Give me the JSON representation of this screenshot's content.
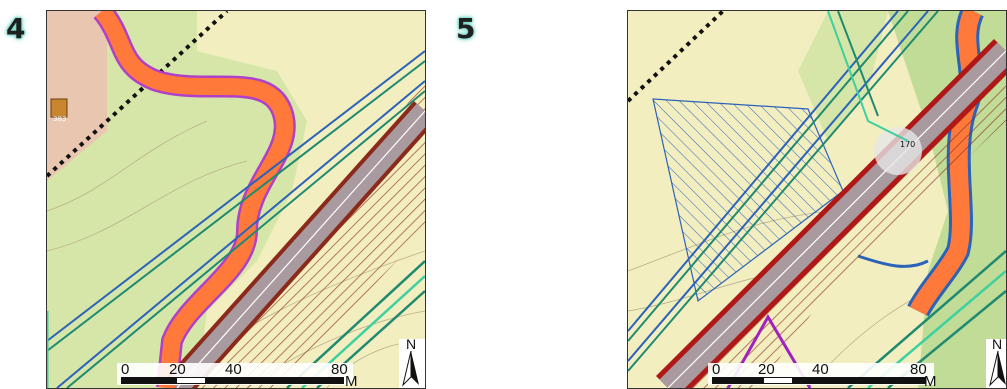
{
  "panels": [
    {
      "number": "4",
      "scale": {
        "ticks": [
          "0",
          "20",
          "40",
          "80"
        ],
        "unit": "M"
      },
      "north": "N",
      "labels": {
        "building": "383",
        "road": ""
      }
    },
    {
      "number": "5",
      "scale": {
        "ticks": [
          "0",
          "20",
          "40",
          "80"
        ],
        "unit": "M"
      },
      "north": "N",
      "labels": {
        "road_number": "170"
      }
    }
  ],
  "colors": {
    "background": "#f3eec0",
    "forest": "#cfe0a2",
    "river": "#ff7a3a",
    "river_edge": "#b040c8",
    "road": "#a85a68",
    "embankment": "#8b2a1a",
    "track_blue": "#2b63b8",
    "track_teal": "#1f8a70",
    "track_green": "#3fd0a0",
    "boundary": "#111111"
  }
}
